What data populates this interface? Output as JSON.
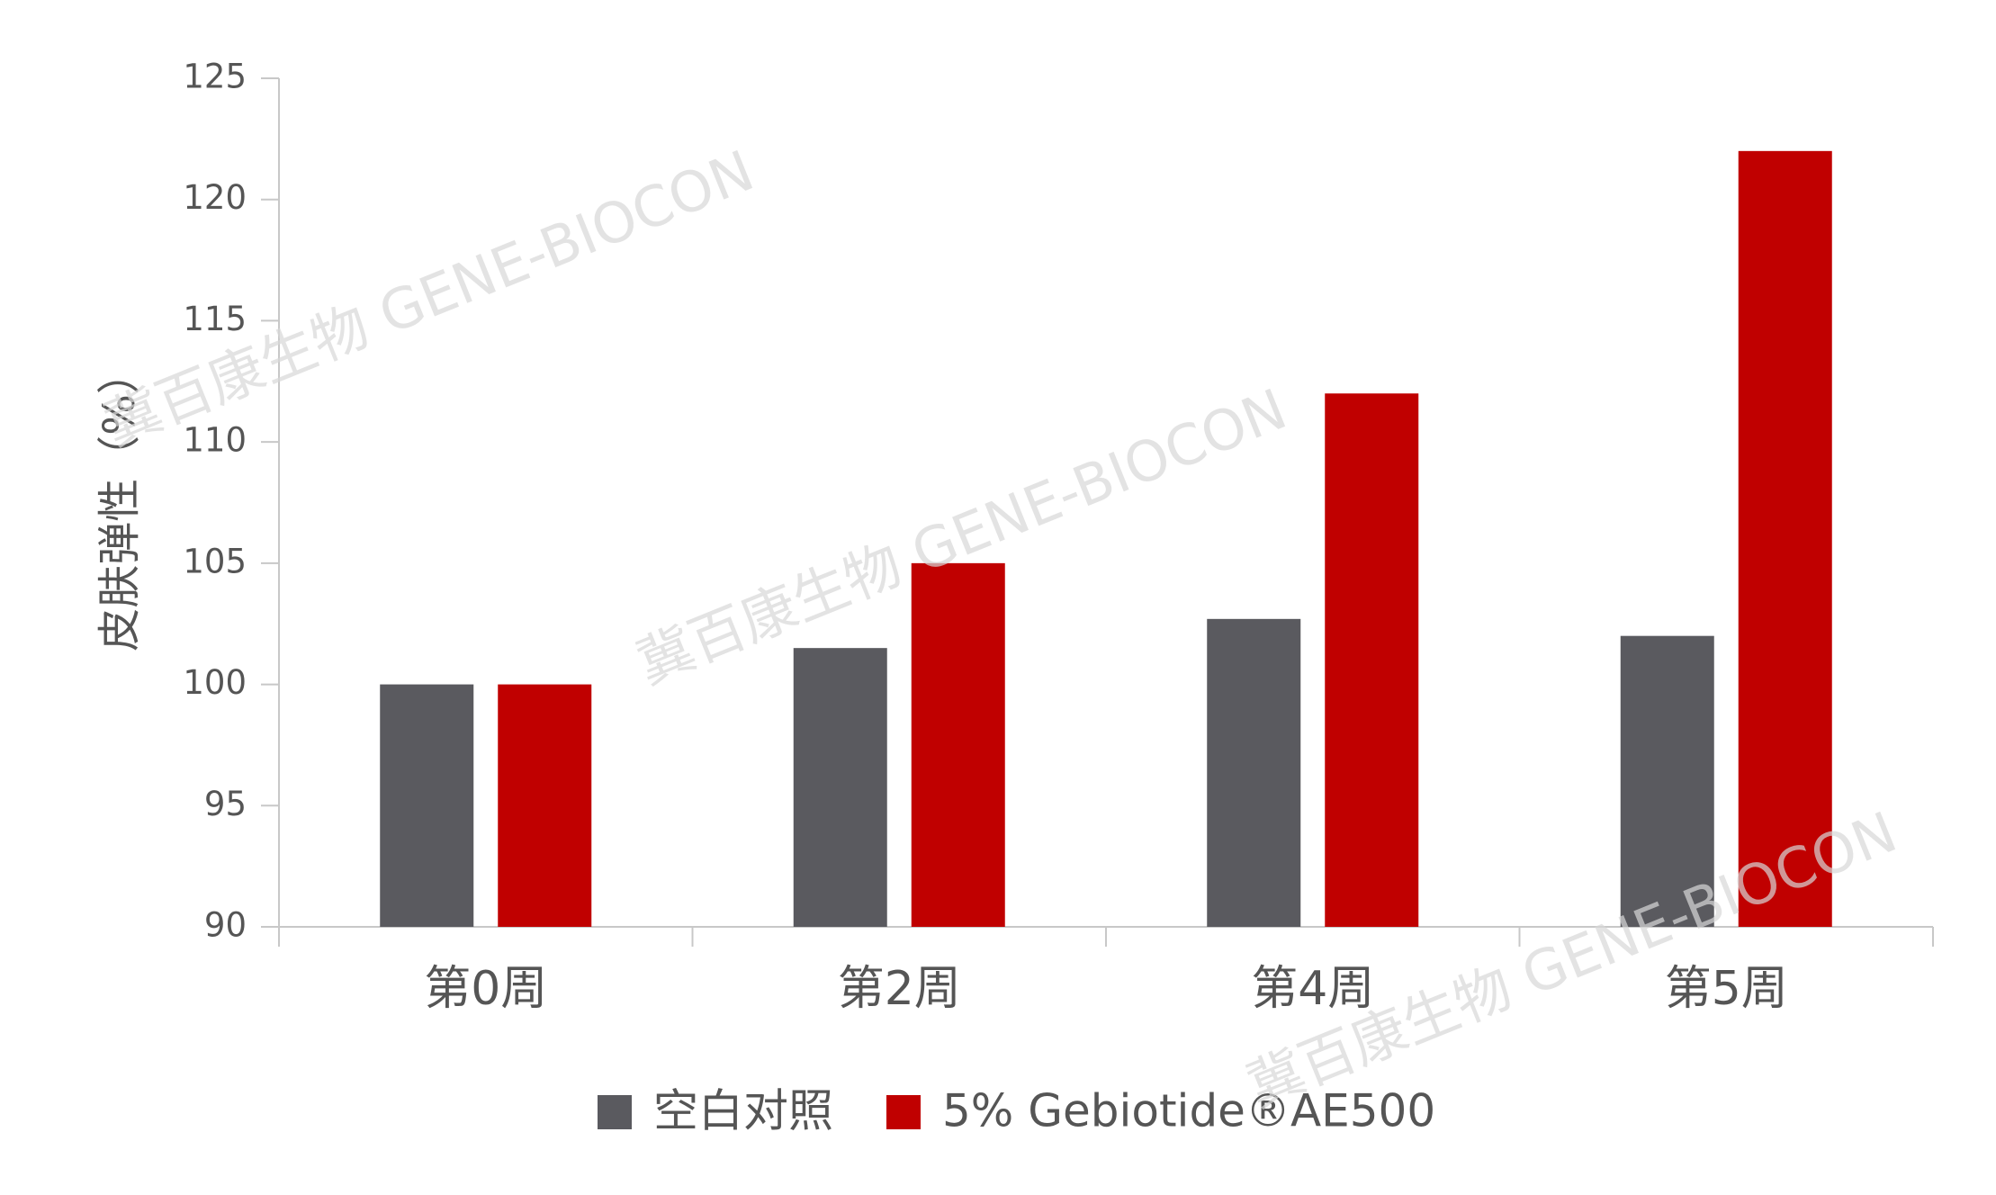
{
  "chart_data": {
    "type": "bar",
    "ylabel": "皮肤弹性（%）",
    "watermark": "冀百康生物 GENE-BIOCON",
    "categories": [
      "第0周",
      "第2周",
      "第4周",
      "第5周"
    ],
    "series": [
      {
        "name": "空白对照",
        "color": "#5a5a5f",
        "values": [
          100,
          101.5,
          102.7,
          102
        ]
      },
      {
        "name": "5% Gebiotide®AE500",
        "color": "#c00000",
        "values": [
          100,
          105,
          112,
          122
        ]
      }
    ],
    "ylim": [
      90,
      125
    ],
    "yticks": [
      90,
      95,
      100,
      105,
      110,
      115,
      120,
      125
    ],
    "legend": "bottom"
  }
}
